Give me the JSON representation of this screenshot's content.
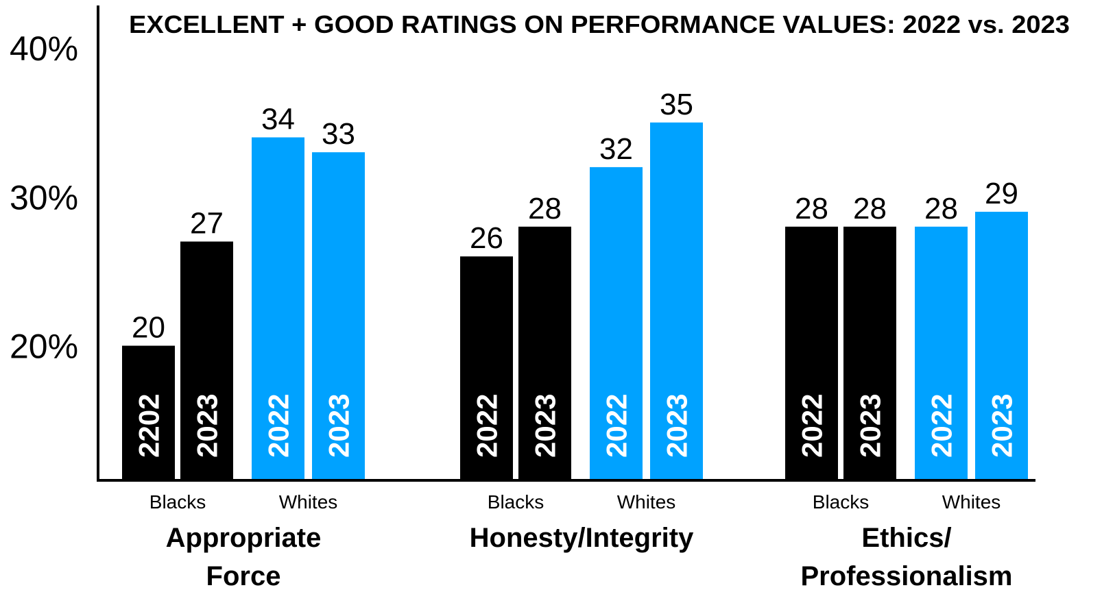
{
  "chart_data": {
    "type": "bar",
    "title": "EXCELLENT + GOOD RATINGS ON PERFORMANCE VALUES: 2022 vs. 2023",
    "ylim": [
      11,
      43
    ],
    "yticks": [
      {
        "value": 20,
        "label": "20%"
      },
      {
        "value": 30,
        "label": "30%"
      },
      {
        "value": 40,
        "label": "40%"
      }
    ],
    "grid": false,
    "groups": [
      {
        "label_lines": [
          "Appropriate",
          "Force"
        ],
        "subgroups": [
          {
            "name": "Blacks",
            "color": "#000000",
            "bars": [
              {
                "label": "2202",
                "value": 20
              },
              {
                "label": "2023",
                "value": 27
              }
            ]
          },
          {
            "name": "Whites",
            "color": "#00a2ff",
            "bars": [
              {
                "label": "2022",
                "value": 34
              },
              {
                "label": "2023",
                "value": 33
              }
            ]
          }
        ]
      },
      {
        "label_lines": [
          "Honesty/Integrity"
        ],
        "subgroups": [
          {
            "name": "Blacks",
            "color": "#000000",
            "bars": [
              {
                "label": "2022",
                "value": 26
              },
              {
                "label": "2023",
                "value": 28
              }
            ]
          },
          {
            "name": "Whites",
            "color": "#00a2ff",
            "bars": [
              {
                "label": "2022",
                "value": 32
              },
              {
                "label": "2023",
                "value": 35
              }
            ]
          }
        ]
      },
      {
        "label_lines": [
          "Ethics/",
          "Professionalism"
        ],
        "subgroups": [
          {
            "name": "Blacks",
            "color": "#000000",
            "bars": [
              {
                "label": "2022",
                "value": 28
              },
              {
                "label": "2023",
                "value": 28
              }
            ]
          },
          {
            "name": "Whites",
            "color": "#00a2ff",
            "bars": [
              {
                "label": "2022",
                "value": 28
              },
              {
                "label": "2023",
                "value": 29
              }
            ]
          }
        ]
      }
    ]
  }
}
